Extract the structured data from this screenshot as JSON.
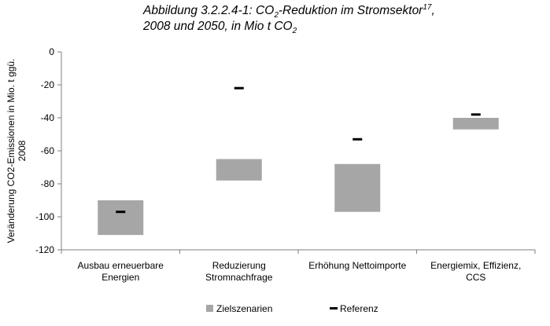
{
  "title": {
    "prefix": "Abbildung 3.2.2.4-1: CO",
    "sub1": "2",
    "mid": "-Reduktion im Stromsektor",
    "sup": "17",
    "comma": ",",
    "line2_prefix": "2008 und 2050, in Mio t CO",
    "sub2": "2"
  },
  "chart_data": {
    "type": "bar",
    "categories": [
      [
        "Ausbau erneuerbare",
        "Energien"
      ],
      [
        "Reduzierung",
        "Stromnachfrage"
      ],
      [
        "Erhöhung Nettoimporte"
      ],
      [
        "Energiemix, Effizienz,",
        "CCS"
      ]
    ],
    "series": [
      {
        "name": "Zielszenarien",
        "kind": "floating-range",
        "low": [
          -111,
          -78,
          -97,
          -47
        ],
        "high": [
          -90,
          -65,
          -68,
          -40
        ]
      },
      {
        "name": "Referenz",
        "kind": "marker",
        "values": [
          -97,
          -22,
          -53,
          -38
        ]
      }
    ],
    "ylabel_lines": [
      "Veränderung  CO2-Emissionen in Mio. t ggü.",
      "2008"
    ],
    "ylim": [
      -120,
      0
    ],
    "yticks": [
      0,
      -20,
      -40,
      -60,
      -80,
      -100,
      -120
    ],
    "grid": false,
    "legend_position": "bottom",
    "colors": {
      "range": "#a6a6a6",
      "marker": "#000000",
      "axis": "#7f7f7f"
    }
  }
}
